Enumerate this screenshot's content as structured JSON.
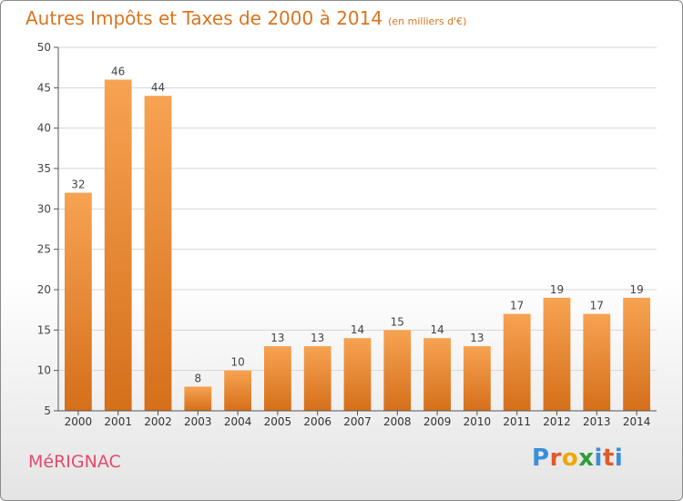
{
  "title": "Autres Impôts et Taxes de 2000 à 2014",
  "subtitle": "(en milliers d'€)",
  "city": "MéRIGNAC",
  "logo": {
    "text": "Proxiti",
    "colors": [
      "#3a8fd8",
      "#e05a2a",
      "#f0a800",
      "#2e9e3a",
      "#3a8fd8",
      "#e05a2a",
      "#3a8fd8"
    ]
  },
  "colors": {
    "bar_top": "#f7a352",
    "bar_bottom": "#d56f1a",
    "title": "#d9751f",
    "city": "#e14b6e"
  },
  "chart_data": {
    "type": "bar",
    "categories": [
      "2000",
      "2001",
      "2002",
      "2003",
      "2004",
      "2005",
      "2006",
      "2007",
      "2008",
      "2009",
      "2010",
      "2011",
      "2012",
      "2013",
      "2014"
    ],
    "values": [
      32,
      46,
      44,
      8,
      10,
      13,
      13,
      14,
      15,
      14,
      13,
      17,
      19,
      17,
      19
    ],
    "title": "Autres Impôts et Taxes de 2000 à 2014",
    "subtitle": "(en milliers d'€)",
    "xlabel": "",
    "ylabel": "",
    "ylim": [
      5,
      50
    ],
    "yticks": [
      5,
      10,
      15,
      20,
      25,
      30,
      35,
      40,
      45,
      50
    ],
    "grid": true,
    "data_labels": true
  }
}
